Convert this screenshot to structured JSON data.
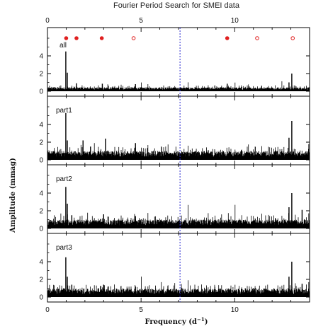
{
  "chart_data": {
    "type": "line",
    "title": "Fourier Period Search for SMEI data",
    "xlabel": "Frequency (d",
    "xlabel_sup": "−1",
    "xlabel_close": ")",
    "ylabel": "Amplitude (mmag)",
    "xlim": [
      0,
      14
    ],
    "ylim": [
      0,
      6
    ],
    "x_ticks": [
      0,
      5,
      10
    ],
    "y_ticks": [
      0,
      2,
      4
    ],
    "reference_line": {
      "x": 7.08,
      "color": "#2a2ad0",
      "style": "dotted"
    },
    "panels": [
      {
        "name": "all",
        "peaks": [
          {
            "x": 0.98,
            "y": 4.5
          },
          {
            "x": 1.06,
            "y": 2.1
          },
          {
            "x": 1.55,
            "y": 0.9
          },
          {
            "x": 2.93,
            "y": 0.85
          },
          {
            "x": 4.7,
            "y": 0.8
          },
          {
            "x": 9.6,
            "y": 0.85
          },
          {
            "x": 12.9,
            "y": 1.0
          },
          {
            "x": 13.05,
            "y": 2.0
          }
        ],
        "noise_level": 0.45,
        "markers": [
          {
            "x": 1.0,
            "filled": true
          },
          {
            "x": 1.55,
            "filled": true
          },
          {
            "x": 2.9,
            "filled": true
          },
          {
            "x": 4.6,
            "filled": false
          },
          {
            "x": 9.6,
            "filled": true
          },
          {
            "x": 11.2,
            "filled": false
          },
          {
            "x": 13.1,
            "filled": false
          }
        ]
      },
      {
        "name": "part1",
        "peaks": [
          {
            "x": 0.98,
            "y": 5.3
          },
          {
            "x": 1.06,
            "y": 2.2
          },
          {
            "x": 1.9,
            "y": 2.2
          },
          {
            "x": 2.3,
            "y": 1.5
          },
          {
            "x": 3.1,
            "y": 2.4
          },
          {
            "x": 4.7,
            "y": 1.9
          },
          {
            "x": 12.9,
            "y": 2.5
          },
          {
            "x": 13.05,
            "y": 4.4
          }
        ],
        "noise_level": 1.0
      },
      {
        "name": "part2",
        "peaks": [
          {
            "x": 0.98,
            "y": 4.7
          },
          {
            "x": 1.06,
            "y": 2.8
          },
          {
            "x": 1.3,
            "y": 1.5
          },
          {
            "x": 3.0,
            "y": 1.6
          },
          {
            "x": 4.7,
            "y": 1.4
          },
          {
            "x": 12.9,
            "y": 2.4
          },
          {
            "x": 13.05,
            "y": 4.0
          },
          {
            "x": 13.6,
            "y": 2.1
          }
        ],
        "noise_level": 1.0
      },
      {
        "name": "part3",
        "peaks": [
          {
            "x": 0.98,
            "y": 4.5
          },
          {
            "x": 1.06,
            "y": 2.3
          },
          {
            "x": 1.3,
            "y": 1.4
          },
          {
            "x": 3.0,
            "y": 1.4
          },
          {
            "x": 4.7,
            "y": 1.2
          },
          {
            "x": 12.9,
            "y": 2.3
          },
          {
            "x": 13.05,
            "y": 4.0
          },
          {
            "x": 13.6,
            "y": 1.5
          }
        ],
        "noise_level": 0.95
      }
    ],
    "colors": {
      "trace": "#000000",
      "marker": "#e02020",
      "reference": "#2a2ad0"
    }
  }
}
